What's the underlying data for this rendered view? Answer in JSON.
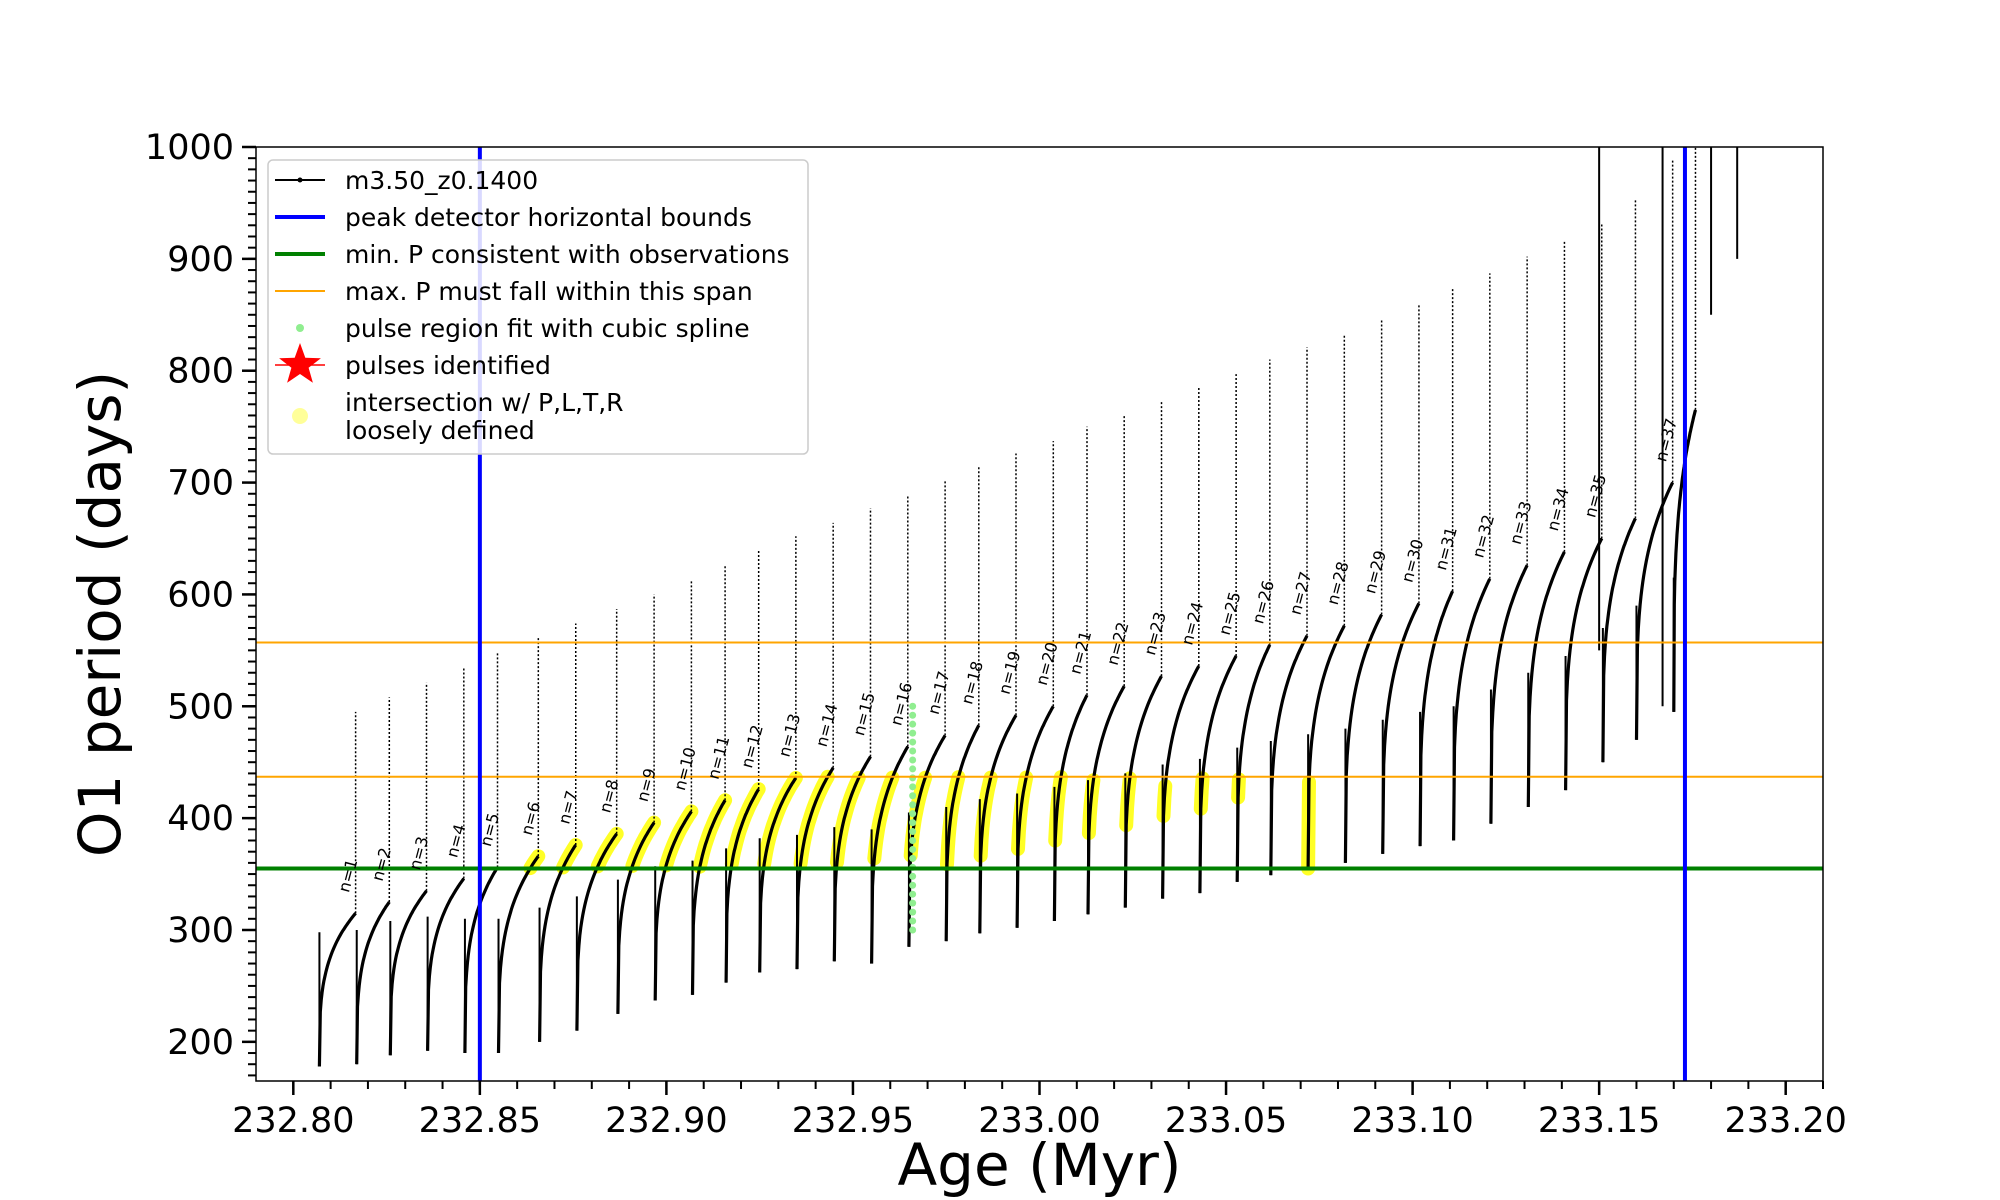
{
  "chart_data": {
    "type": "scatter",
    "title": "",
    "xlabel": "Age (Myr)",
    "ylabel": "O1 period (days)",
    "xlim": [
      232.79,
      233.21
    ],
    "ylim": [
      165,
      1000
    ],
    "xticks": [
      232.8,
      232.85,
      232.9,
      232.95,
      233.0,
      233.05,
      233.1,
      233.15,
      233.2
    ],
    "xtick_labels": [
      "232.80",
      "232.85",
      "232.90",
      "232.95",
      "233.00",
      "233.05",
      "233.10",
      "233.15",
      "233.20"
    ],
    "yticks": [
      200,
      300,
      400,
      500,
      600,
      700,
      800,
      900,
      1000
    ],
    "ytick_labels": [
      "200",
      "300",
      "400",
      "500",
      "600",
      "700",
      "800",
      "900",
      "1000"
    ],
    "grid": false,
    "legend_position": "top-left",
    "legend": [
      {
        "label": "m3.50_z0.1400",
        "style": "line-marker",
        "color": "#000000"
      },
      {
        "label": "peak detector horizontal bounds",
        "style": "line",
        "color": "#0000ff"
      },
      {
        "label": "min. P consistent with observations",
        "style": "line",
        "color": "#008000"
      },
      {
        "label": "max. P must fall within this span",
        "style": "thin-line",
        "color": "#ffa500"
      },
      {
        "label": "pulse region fit with cubic spline",
        "style": "dot",
        "color": "#90ee90"
      },
      {
        "label": "pulses identified",
        "style": "star",
        "color": "#ff0000"
      },
      {
        "label_lines": [
          "intersection w/ P,L,T,R",
          "loosely defined"
        ],
        "style": "big-dot",
        "color": "#ffff99"
      }
    ],
    "reference_lines": {
      "peak_detector_bounds_x": [
        232.85,
        233.173
      ],
      "min_P_observations": 355,
      "max_P_span": [
        437,
        557
      ]
    },
    "pulse_start_ages": [
      232.807,
      232.817,
      232.826,
      232.836,
      232.846,
      232.855,
      232.866,
      232.876,
      232.887,
      232.897,
      232.907,
      232.916,
      232.925,
      232.935,
      232.945,
      232.955,
      232.965,
      232.975,
      232.984,
      232.994,
      233.004,
      233.013,
      233.023,
      233.033,
      233.043,
      233.053,
      233.062,
      233.072,
      233.082,
      233.092,
      233.102,
      233.111,
      233.121,
      233.131,
      233.141,
      233.151,
      233.16,
      233.17
    ],
    "pulse_min_P": [
      178,
      180,
      188,
      192,
      190,
      190,
      200,
      210,
      225,
      237,
      242,
      253,
      262,
      265,
      272,
      270,
      285,
      290,
      297,
      302,
      308,
      314,
      320,
      328,
      333,
      343,
      349,
      355,
      360,
      368,
      375,
      380,
      395,
      410,
      425,
      450,
      470,
      495
    ],
    "pulse_max_P": [
      315,
      325,
      335,
      346,
      356,
      366,
      376,
      386,
      396,
      406,
      416,
      426,
      436,
      445,
      455,
      464,
      474,
      483,
      492,
      500,
      510,
      518,
      527,
      536,
      545,
      555,
      563,
      572,
      582,
      592,
      603,
      614,
      626,
      638,
      650,
      668,
      700,
      765
    ],
    "pulse_labels": [
      "n=1",
      "n=2",
      "n=3",
      "n=4",
      "n=5",
      "n=6",
      "n=7",
      "n=8",
      "n=9",
      "n=10",
      "n=11",
      "n=12",
      "n=13",
      "n=14",
      "n=15",
      "n=16",
      "n=17",
      "n=18",
      "n=19",
      "n=20",
      "n=21",
      "n=22",
      "n=23",
      "n=24",
      "n=25",
      "n=26",
      "n=27",
      "n=28",
      "n=29",
      "n=30",
      "n=31",
      "n=32",
      "n=33",
      "n=34",
      "n=35",
      "n=37"
    ],
    "colors": {
      "track": "#000000",
      "bounds": "#0000ff",
      "min_p": "#008000",
      "max_p_span": "#ffa500",
      "spline": "#90ee90",
      "identified": "#ff0000",
      "intersection": "#ffff00"
    }
  }
}
